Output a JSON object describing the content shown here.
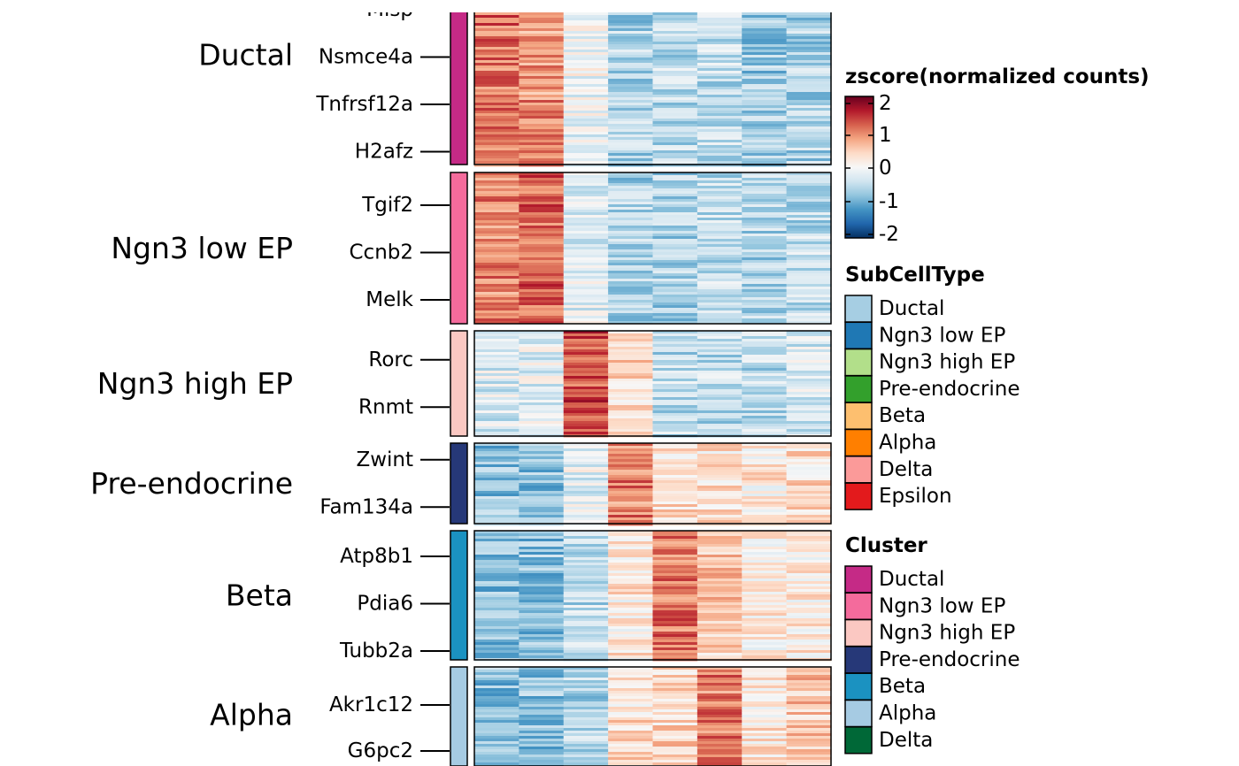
{
  "chart_data": {
    "type": "heatmap",
    "legend_placement": "right",
    "color_legend": {
      "title": "zscore(normalized counts)",
      "ticks": [
        "2",
        "1",
        "0",
        "-1",
        "-2"
      ],
      "range": [
        -2,
        2
      ],
      "colors": [
        "#053061",
        "#2166ac",
        "#4393c3",
        "#92c5de",
        "#d1e5f0",
        "#f7f7f7",
        "#fddbc7",
        "#f4a582",
        "#d6604d",
        "#b2182b",
        "#67001f"
      ]
    },
    "subcelltype_legend": {
      "title": "SubCellType",
      "entries": [
        {
          "label": "Ductal",
          "color": "#a6cee3"
        },
        {
          "label": "Ngn3 low EP",
          "color": "#1f78b4"
        },
        {
          "label": "Ngn3 high EP",
          "color": "#b2df8a"
        },
        {
          "label": "Pre-endocrine",
          "color": "#33a02c"
        },
        {
          "label": "Beta",
          "color": "#fdbf6f"
        },
        {
          "label": "Alpha",
          "color": "#ff7f00"
        },
        {
          "label": "Delta",
          "color": "#fb9a99"
        },
        {
          "label": "Epsilon",
          "color": "#e31a1c"
        }
      ]
    },
    "cluster_legend": {
      "title": "Cluster",
      "entries": [
        {
          "label": "Ductal",
          "color": "#c52a86"
        },
        {
          "label": "Ngn3 low EP",
          "color": "#f46b9c"
        },
        {
          "label": "Ngn3 high EP",
          "color": "#fbc8c2"
        },
        {
          "label": "Pre-endocrine",
          "color": "#263878"
        },
        {
          "label": "Beta",
          "color": "#1b92c1"
        },
        {
          "label": "Alpha",
          "color": "#a6cbe3"
        },
        {
          "label": "Delta",
          "color": "#006837"
        }
      ]
    },
    "row_groups": [
      {
        "cluster": "Ductal",
        "color": "#c52a86",
        "genes": [
          "Mlsp",
          "Nsmce4a",
          "Tnfrsf12a",
          "H2afz"
        ],
        "column_means": [
          1.1,
          0.9,
          -0.1,
          -0.6,
          -0.5,
          -0.5,
          -0.7,
          -0.6
        ]
      },
      {
        "cluster": "Ngn3 low EP",
        "color": "#f46b9c",
        "genes": [
          "Tgif2",
          "Ccnb2",
          "Melk"
        ],
        "column_means": [
          1.0,
          1.2,
          -0.2,
          -0.6,
          -0.6,
          -0.5,
          -0.6,
          -0.5
        ]
      },
      {
        "cluster": "Ngn3 high EP",
        "color": "#fbc8c2",
        "genes": [
          "Rorc",
          "Rnmt"
        ],
        "column_means": [
          -0.3,
          -0.2,
          1.3,
          0.4,
          -0.5,
          -0.5,
          -0.5,
          -0.3
        ]
      },
      {
        "cluster": "Pre-endocrine",
        "color": "#263878",
        "genes": [
          "Zwint",
          "Fam134a"
        ],
        "column_means": [
          -0.8,
          -0.8,
          -0.2,
          1.0,
          0.3,
          0.3,
          0.2,
          0.3
        ]
      },
      {
        "cluster": "Beta",
        "color": "#1b92c1",
        "genes": [
          "Atp8b1",
          "Pdia6",
          "Tubb2a"
        ],
        "column_means": [
          -0.8,
          -0.8,
          -0.5,
          0.2,
          1.1,
          0.5,
          0.2,
          0.2
        ]
      },
      {
        "cluster": "Alpha",
        "color": "#a6cbe3",
        "genes": [
          "Akr1c12",
          "G6pc2"
        ],
        "column_means": [
          -0.8,
          -0.8,
          -0.6,
          0.3,
          0.4,
          1.0,
          0.2,
          0.5
        ]
      }
    ],
    "column_count": 8
  }
}
